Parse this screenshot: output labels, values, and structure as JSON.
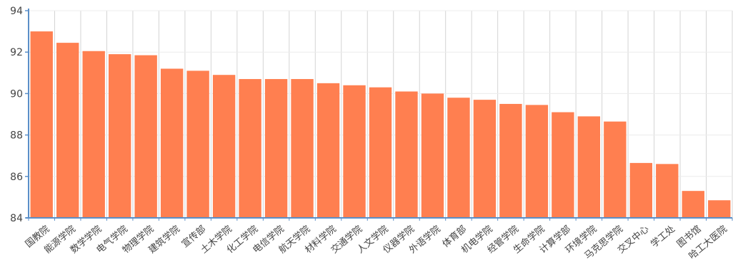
{
  "chart_data": {
    "type": "bar",
    "categories": [
      "国教院",
      "能源学院",
      "数学学院",
      "电气学院",
      "物理学院",
      "建筑学院",
      "宣传部",
      "土木学院",
      "化工学院",
      "电信学院",
      "航天学院",
      "材料学院",
      "交通学院",
      "人文学院",
      "仪器学院",
      "外语学院",
      "体育部",
      "机电学院",
      "经管学院",
      "生命学院",
      "计算学部",
      "环境学院",
      "马克思学院",
      "交叉中心",
      "学工处",
      "图书馆",
      "哈工大医院"
    ],
    "values": [
      93.0,
      92.45,
      92.05,
      91.9,
      91.85,
      91.2,
      91.1,
      90.9,
      90.7,
      90.7,
      90.7,
      90.5,
      90.4,
      90.3,
      90.1,
      90.0,
      89.8,
      89.7,
      89.5,
      89.45,
      89.1,
      88.9,
      88.65,
      86.65,
      86.6,
      85.3,
      84.85
    ],
    "ylim": [
      84,
      94
    ],
    "yticks": [
      84,
      86,
      88,
      90,
      92,
      94
    ],
    "grid": "vertical",
    "legend": "none",
    "bar_color": "#ff7f50",
    "grid_color": "#d4d4d4",
    "axis_color": "#5b8fc8",
    "text_color": "#444444"
  }
}
